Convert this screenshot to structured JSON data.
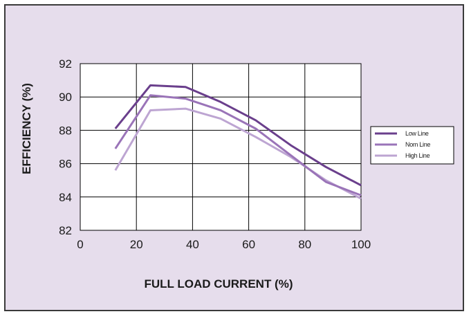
{
  "chart_data": {
    "type": "line",
    "title": "",
    "xlabel": "FULL LOAD CURRENT (%)",
    "ylabel": "EFFICIENCY (%)",
    "xlim": [
      0,
      100
    ],
    "ylim": [
      82,
      92
    ],
    "xticks": [
      0,
      20,
      40,
      60,
      80,
      100
    ],
    "yticks": [
      82,
      84,
      86,
      88,
      90,
      92
    ],
    "grid": true,
    "legend_position": "right",
    "series": [
      {
        "name": "Low Line",
        "color": "#6a3f8c",
        "x": [
          12.5,
          25,
          37.5,
          50,
          62.5,
          75,
          87.5,
          100
        ],
        "y": [
          88.1,
          90.7,
          90.6,
          89.7,
          88.6,
          87.1,
          85.8,
          84.7
        ]
      },
      {
        "name": "Nom Line",
        "color": "#9a74b8",
        "x": [
          12.5,
          25,
          37.5,
          50,
          62.5,
          75,
          87.5,
          100
        ],
        "y": [
          86.9,
          90.1,
          89.9,
          89.2,
          88.1,
          86.5,
          84.9,
          84.1
        ]
      },
      {
        "name": "High Line",
        "color": "#bda5d2",
        "x": [
          12.5,
          25,
          37.5,
          50,
          62.5,
          75,
          87.5,
          100
        ],
        "y": [
          85.6,
          89.2,
          89.3,
          88.7,
          87.6,
          86.4,
          85.0,
          83.9
        ]
      }
    ]
  }
}
